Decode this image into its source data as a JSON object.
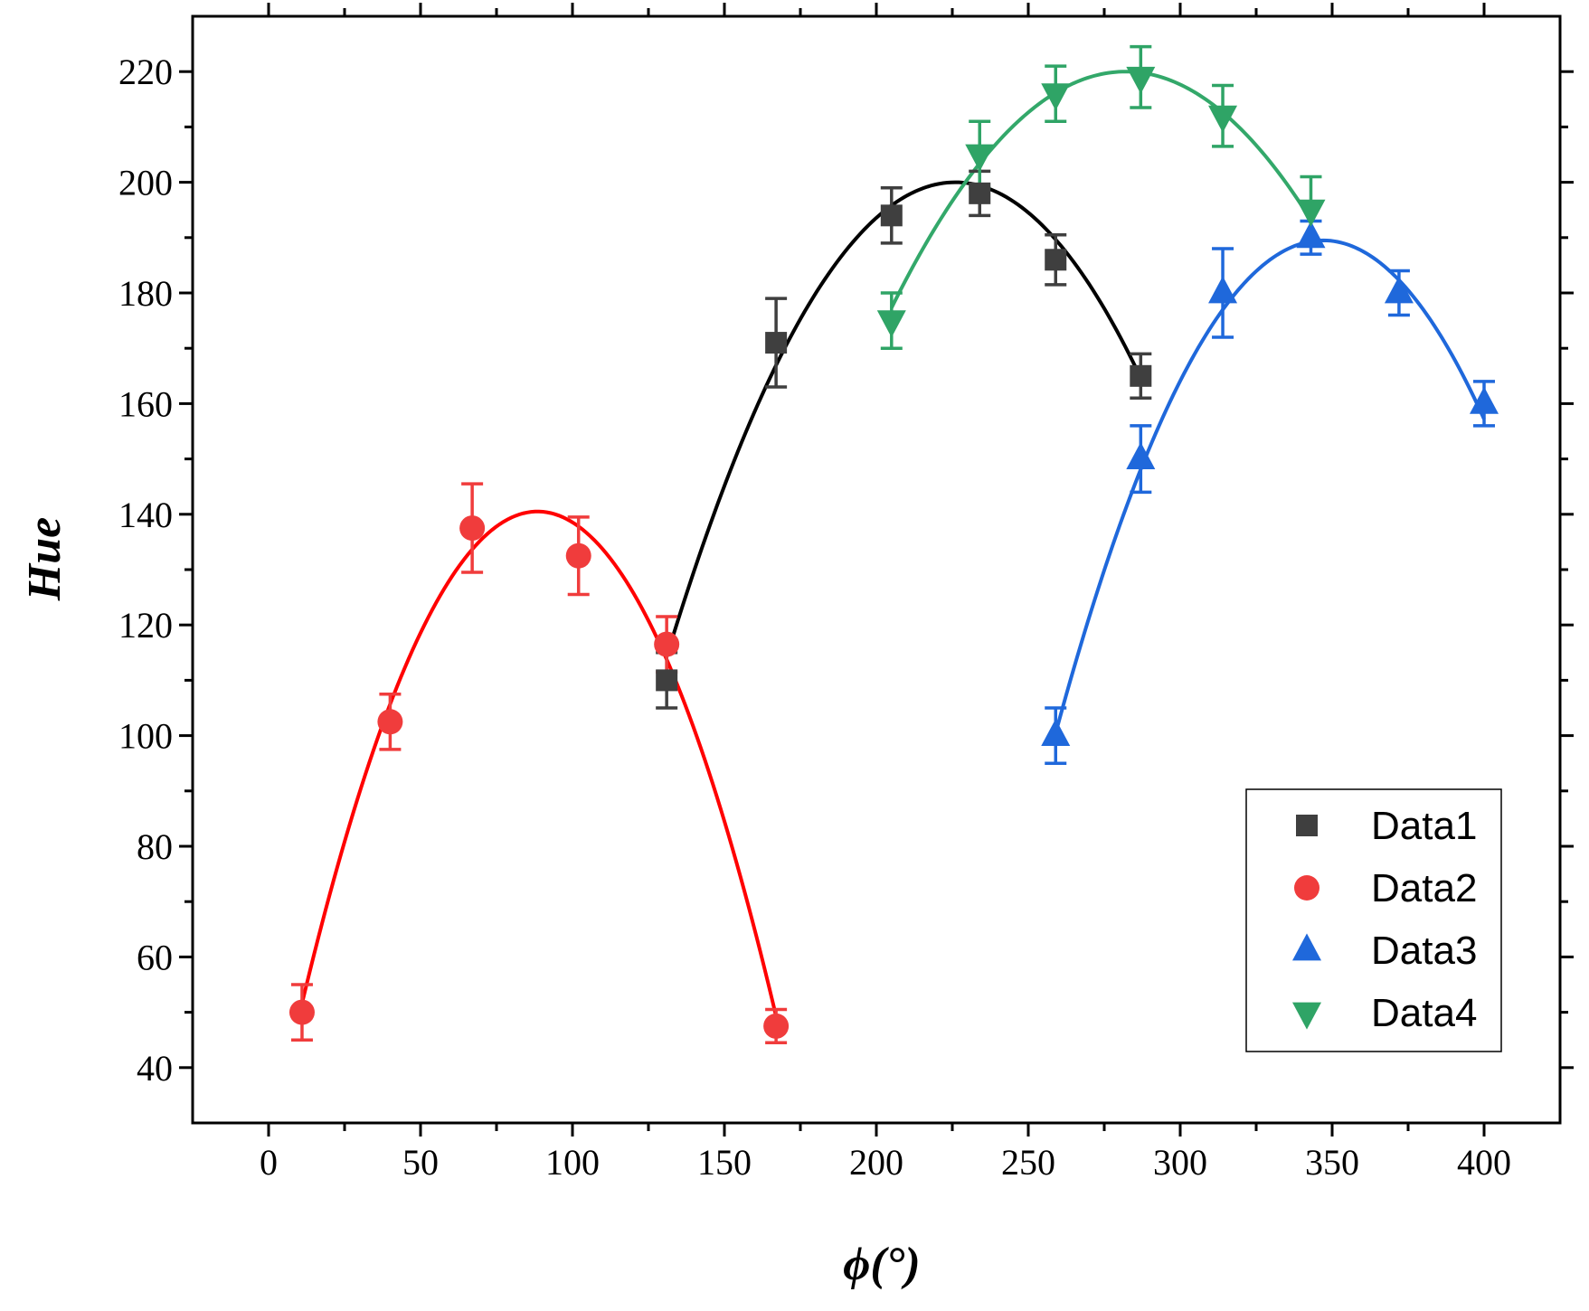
{
  "chart_data": {
    "type": "scatter",
    "title": "",
    "xlabel": "ϕ(°)",
    "ylabel": "Hue",
    "xlim": [
      -25,
      425
    ],
    "ylim": [
      30,
      230
    ],
    "xticks": [
      0,
      50,
      100,
      150,
      200,
      250,
      300,
      350,
      400
    ],
    "yticks": [
      40,
      60,
      80,
      100,
      120,
      140,
      160,
      180,
      200,
      220
    ],
    "grid": false,
    "legend_position": "bottom-right",
    "series": [
      {
        "name": "Data1",
        "marker": "square",
        "color": "#3f3f3f",
        "fit_color": "#000000",
        "points": [
          {
            "x": 131,
            "y": 110,
            "err": 5
          },
          {
            "x": 167,
            "y": 171,
            "err": 8
          },
          {
            "x": 205,
            "y": 194,
            "err": 5
          },
          {
            "x": 234,
            "y": 198,
            "err": 4
          },
          {
            "x": 259,
            "y": 186,
            "err": 4.5
          },
          {
            "x": 287,
            "y": 165,
            "err": 4
          }
        ],
        "fit": {
          "vertex_x": 226,
          "vertex_y": 200,
          "curvature": -0.0095,
          "x_range": [
            131,
            287
          ]
        }
      },
      {
        "name": "Data2",
        "marker": "circle",
        "color": "#f03c3c",
        "fit_color": "#ff0000",
        "points": [
          {
            "x": 11,
            "y": 50,
            "err": 5
          },
          {
            "x": 40,
            "y": 102.5,
            "err": 5
          },
          {
            "x": 67,
            "y": 137.5,
            "err": 8
          },
          {
            "x": 102,
            "y": 132.5,
            "err": 7
          },
          {
            "x": 131,
            "y": 116.5,
            "err": 5
          },
          {
            "x": 167,
            "y": 47.5,
            "err": 3
          }
        ],
        "fit": {
          "vertex_x": 88.5,
          "vertex_y": 140.5,
          "curvature": -0.0148,
          "x_range": [
            11,
            167
          ]
        }
      },
      {
        "name": "Data3",
        "marker": "triangle-up",
        "color": "#1f68db",
        "fit_color": "#1f68db",
        "points": [
          {
            "x": 259,
            "y": 100,
            "err": 5
          },
          {
            "x": 287,
            "y": 150,
            "err": 6
          },
          {
            "x": 314,
            "y": 180,
            "err": 8
          },
          {
            "x": 343,
            "y": 190,
            "err": 3
          },
          {
            "x": 372,
            "y": 180,
            "err": 4
          },
          {
            "x": 400,
            "y": 160,
            "err": 4
          }
        ],
        "fit": {
          "vertex_x": 347,
          "vertex_y": 189.5,
          "curvature": -0.0115,
          "x_range": [
            259,
            400
          ]
        }
      },
      {
        "name": "Data4",
        "marker": "triangle-down",
        "color": "#2fa466",
        "fit_color": "#33a86a",
        "points": [
          {
            "x": 205,
            "y": 175,
            "err": 5
          },
          {
            "x": 234,
            "y": 205,
            "err": 6
          },
          {
            "x": 259,
            "y": 216,
            "err": 5
          },
          {
            "x": 287,
            "y": 219,
            "err": 5.5
          },
          {
            "x": 314,
            "y": 212,
            "err": 5.5
          },
          {
            "x": 343,
            "y": 195,
            "err": 6
          }
        ],
        "fit": {
          "vertex_x": 282,
          "vertex_y": 220,
          "curvature": -0.0072,
          "x_range": [
            205,
            343
          ]
        }
      }
    ]
  }
}
